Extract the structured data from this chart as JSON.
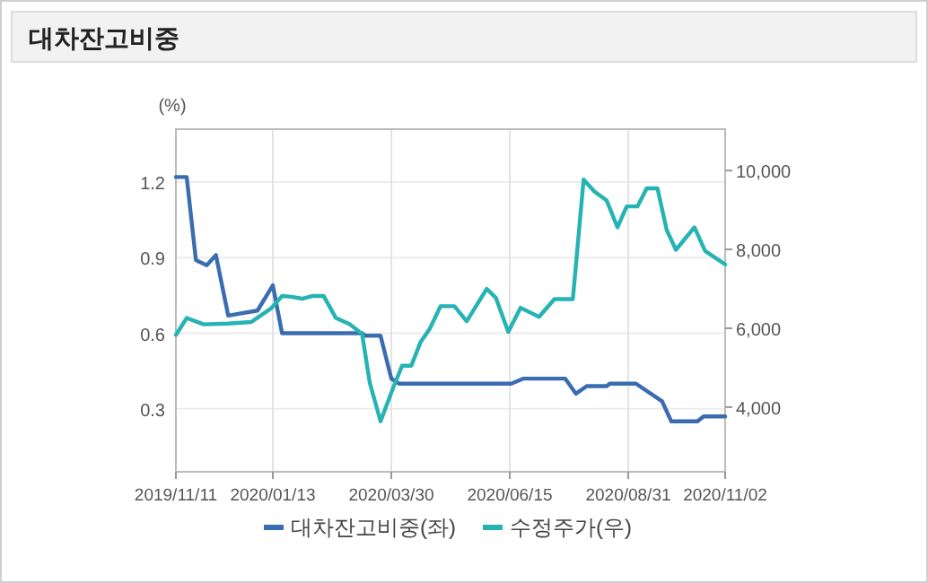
{
  "chart_data": {
    "type": "line",
    "title": "대차잔고비중",
    "ylabel": "(%)",
    "series": [
      {
        "name": "대차잔고비중(좌)",
        "color": "#3a6db0",
        "x": [
          "2019-11-11",
          "2019-11-18",
          "2019-11-24",
          "2019-12-01",
          "2019-12-07",
          "2019-12-15",
          "2020-01-03",
          "2020-01-13",
          "2020-01-19",
          "2020-03-11",
          "2020-03-13",
          "2020-03-23",
          "2020-03-30",
          "2020-04-04",
          "2020-06-16",
          "2020-06-24",
          "2020-07-21",
          "2020-07-28",
          "2020-08-04",
          "2020-08-17",
          "2020-08-19",
          "2020-09-05",
          "2020-09-22",
          "2020-09-28",
          "2020-10-15",
          "2020-10-19",
          "2020-11-02"
        ],
        "values": [
          1.22,
          1.22,
          0.89,
          0.87,
          0.91,
          0.67,
          0.69,
          0.79,
          0.6,
          0.6,
          0.59,
          0.59,
          0.42,
          0.4,
          0.4,
          0.42,
          0.42,
          0.36,
          0.39,
          0.39,
          0.4,
          0.4,
          0.33,
          0.25,
          0.25,
          0.27,
          0.27
        ]
      },
      {
        "name": "수정주가(우)",
        "color": "#26b3b3",
        "axis": "y2",
        "x": [
          "2019-11-11",
          "2019-11-18",
          "2019-11-29",
          "2019-12-15",
          "2019-12-30",
          "2020-01-12",
          "2020-01-19",
          "2020-01-25",
          "2020-02-01",
          "2020-02-08",
          "2020-02-15",
          "2020-02-23",
          "2020-03-03",
          "2020-03-11",
          "2020-03-16",
          "2020-03-23",
          "2020-03-31",
          "2020-04-06",
          "2020-04-12",
          "2020-04-18",
          "2020-04-24",
          "2020-05-01",
          "2020-05-10",
          "2020-05-18",
          "2020-05-31",
          "2020-06-06",
          "2020-06-14",
          "2020-06-22",
          "2020-07-04",
          "2020-07-14",
          "2020-07-26",
          "2020-08-02",
          "2020-08-09",
          "2020-08-17",
          "2020-08-24",
          "2020-08-30",
          "2020-09-06",
          "2020-09-12",
          "2020-09-19",
          "2020-09-25",
          "2020-10-01",
          "2020-10-13",
          "2020-10-20",
          "2020-11-02"
        ],
        "values": [
          5830,
          6260,
          6100,
          6120,
          6160,
          6510,
          6820,
          6800,
          6750,
          6820,
          6820,
          6260,
          6100,
          5860,
          4620,
          3640,
          4470,
          5050,
          5050,
          5650,
          5990,
          6560,
          6560,
          6180,
          7000,
          6770,
          5910,
          6520,
          6290,
          6740,
          6740,
          9770,
          9470,
          9240,
          8560,
          9090,
          9090,
          9550,
          9550,
          8490,
          7990,
          8560,
          7960,
          7620
        ]
      }
    ],
    "xlim": [
      "2019-11-11",
      "2020-11-02"
    ],
    "xticks": [
      {
        "value": "2019-11-11",
        "label": "2019/11/11"
      },
      {
        "value": "2020-01-13",
        "label": "2020/01/13"
      },
      {
        "value": "2020-03-30",
        "label": "2020/03/30"
      },
      {
        "value": "2020-06-15",
        "label": "2020/06/15"
      },
      {
        "value": "2020-08-31",
        "label": "2020/08/31"
      },
      {
        "value": "2020-11-02",
        "label": "2020/11/02"
      }
    ],
    "ylim": [
      0.05,
      1.41
    ],
    "yticks": [
      {
        "value": 0.3,
        "label": "0.3"
      },
      {
        "value": 0.6,
        "label": "0.6"
      },
      {
        "value": 0.9,
        "label": "0.9"
      },
      {
        "value": 1.2,
        "label": "1.2"
      }
    ],
    "y2lim": [
      2360,
      11050
    ],
    "y2ticks": [
      {
        "value": 4000,
        "label": "4,000"
      },
      {
        "value": 6000,
        "label": "6,000"
      },
      {
        "value": 8000,
        "label": "8,000"
      },
      {
        "value": 10000,
        "label": "10,000"
      }
    ],
    "grid": true,
    "legend": "bottom",
    "marker": "none",
    "line_style": "solid"
  }
}
